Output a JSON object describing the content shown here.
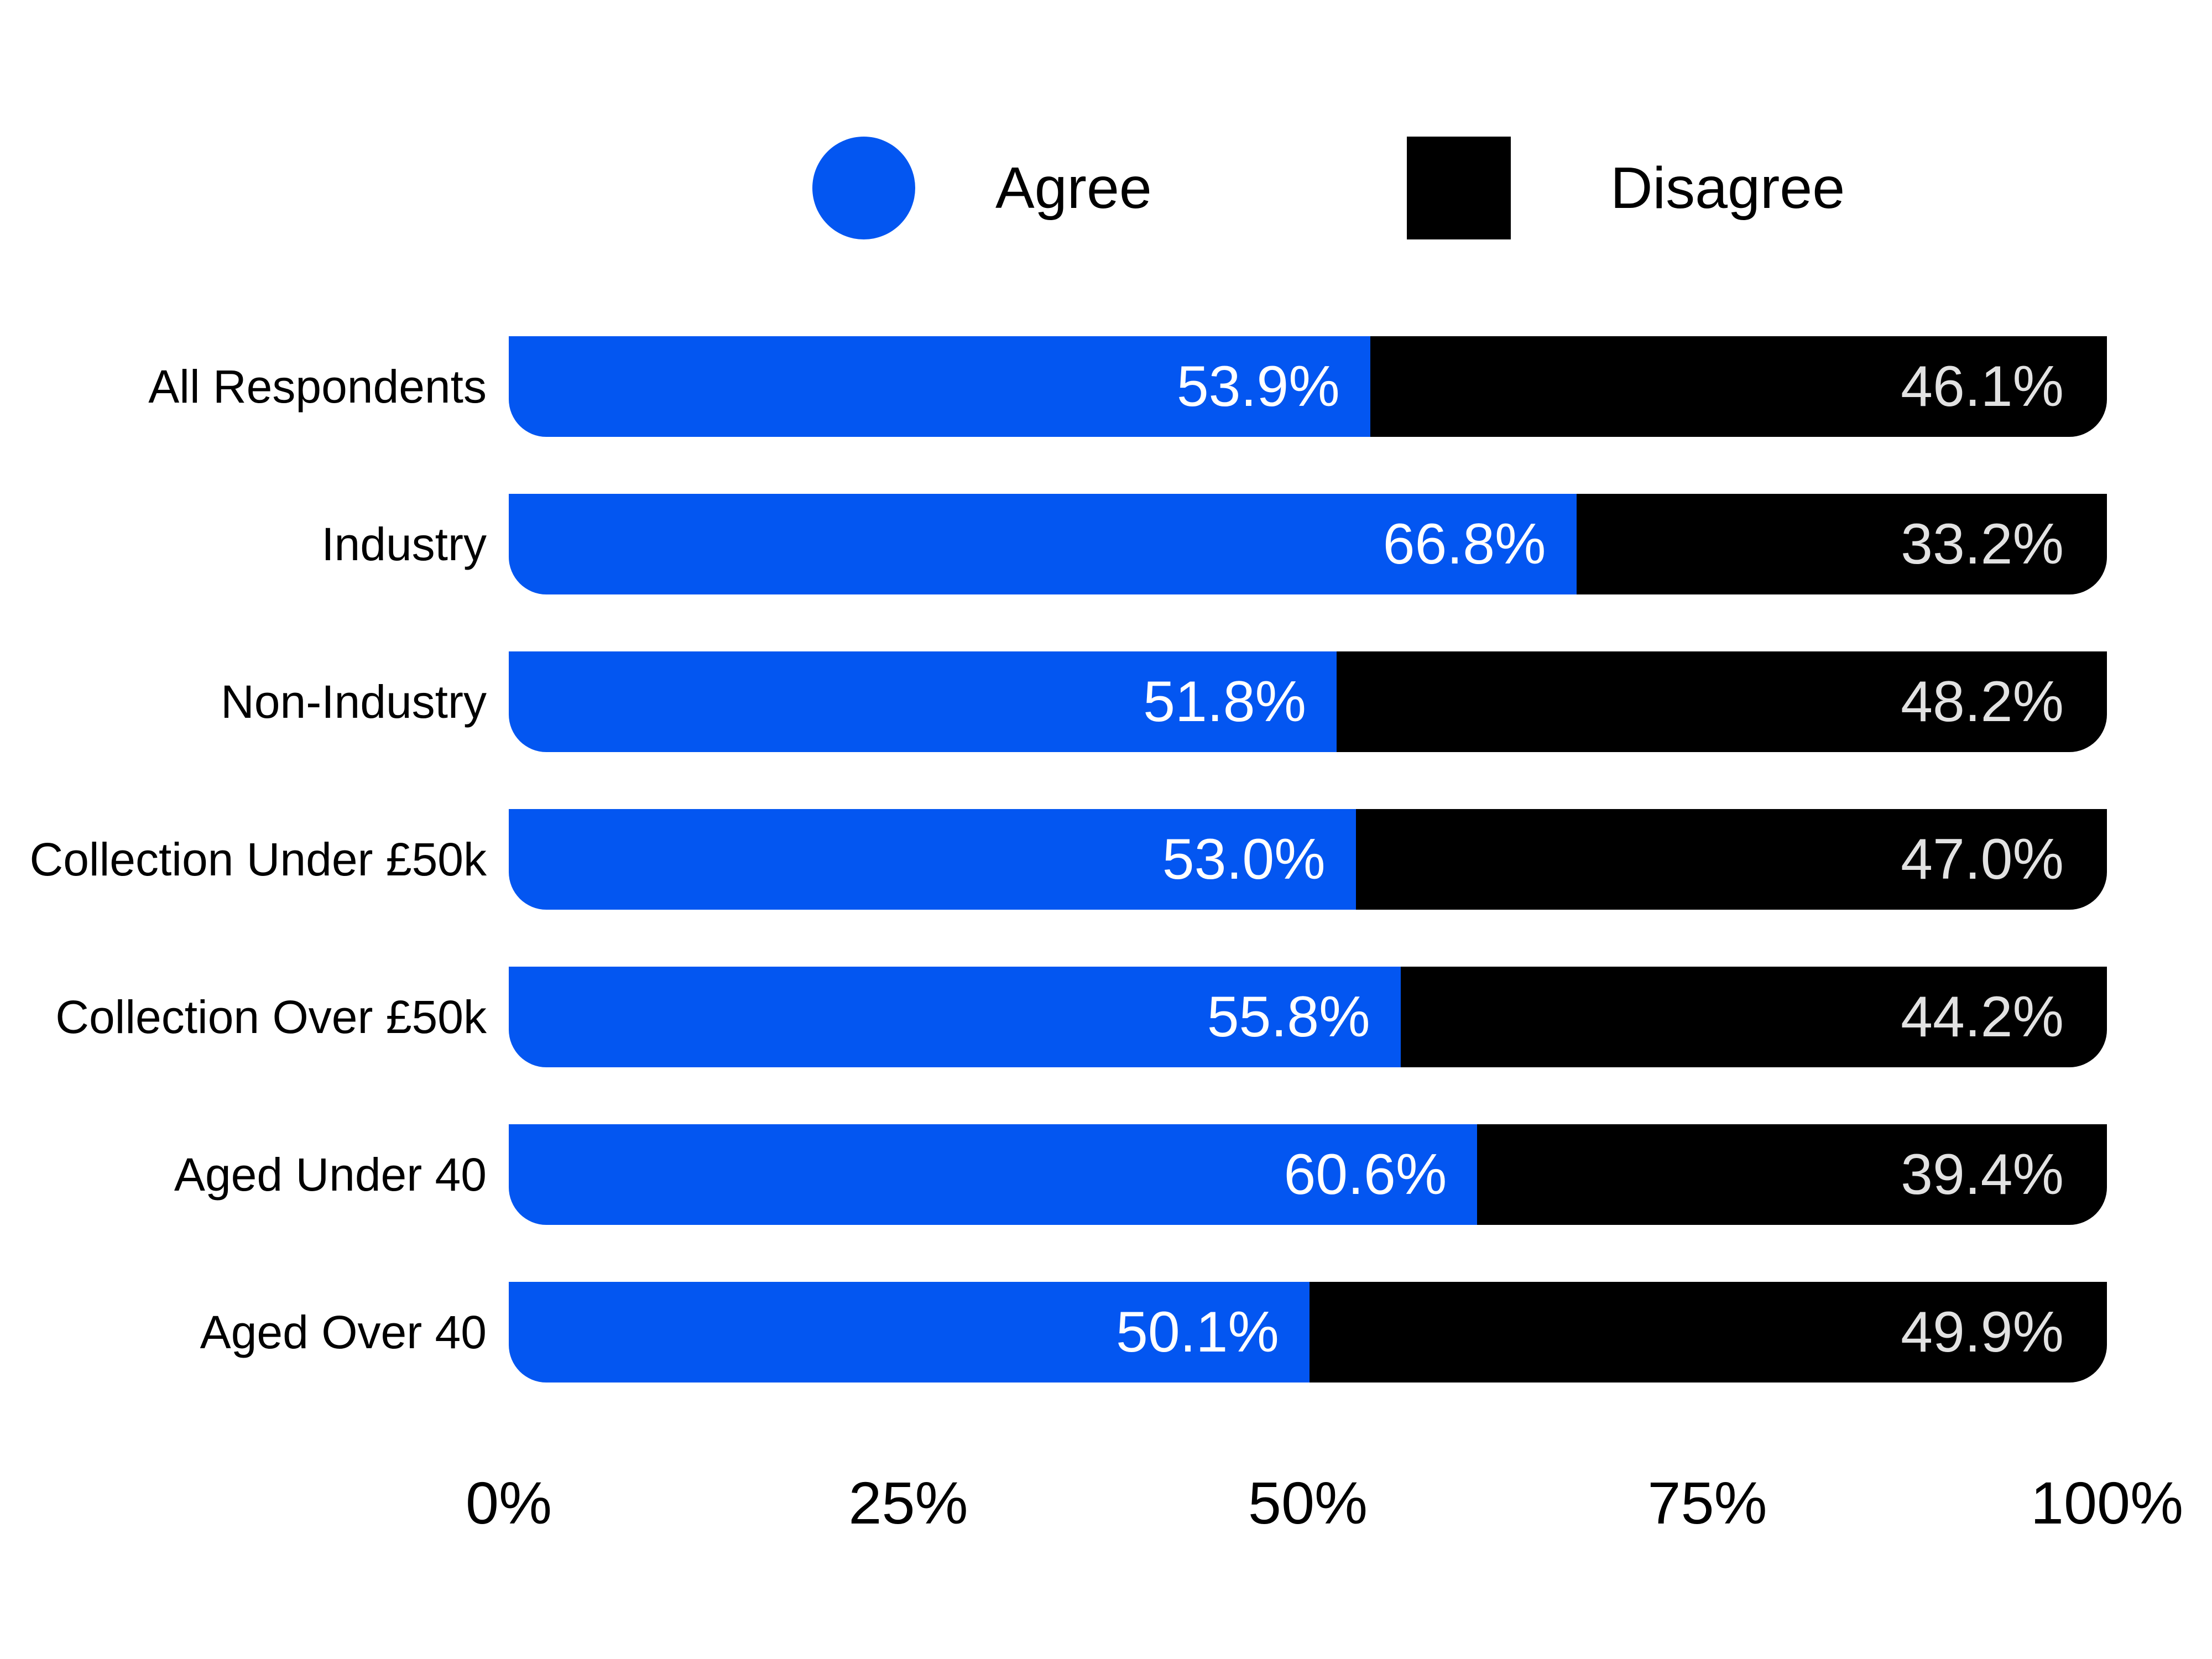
{
  "chart_data": {
    "type": "bar",
    "orientation": "horizontal",
    "stacked": true,
    "unit": "%",
    "background": "#FFFFFF",
    "grid": false,
    "legend_position": "top",
    "categories": [
      "All Respondents",
      "Industry",
      "Non-Industry",
      "Collection Under £50k",
      "Collection Over £50k",
      "Aged Under 40",
      "Aged Over 40"
    ],
    "series": [
      {
        "name": "Agree",
        "marker": "circle",
        "color": "#0356F1",
        "label_color": "#FFFFFF",
        "values": [
          53.9,
          66.8,
          51.8,
          53.0,
          55.8,
          60.6,
          50.1
        ],
        "labels": [
          "53.9%",
          "66.8%",
          "51.8%",
          "53.0%",
          "55.8%",
          "60.6%",
          "50.1%"
        ]
      },
      {
        "name": "Disagree",
        "marker": "square",
        "color": "#000000",
        "label_color": "#E2E2E2",
        "values": [
          46.1,
          33.2,
          48.2,
          47.0,
          44.2,
          39.4,
          49.9
        ],
        "labels": [
          "46.1%",
          "33.2%",
          "48.2%",
          "47.0%",
          "44.2%",
          "39.4%",
          "49.9%"
        ]
      }
    ],
    "xlim": [
      0,
      100
    ],
    "x_ticks": [
      "0%",
      "25%",
      "50%",
      "75%",
      "100%"
    ]
  }
}
